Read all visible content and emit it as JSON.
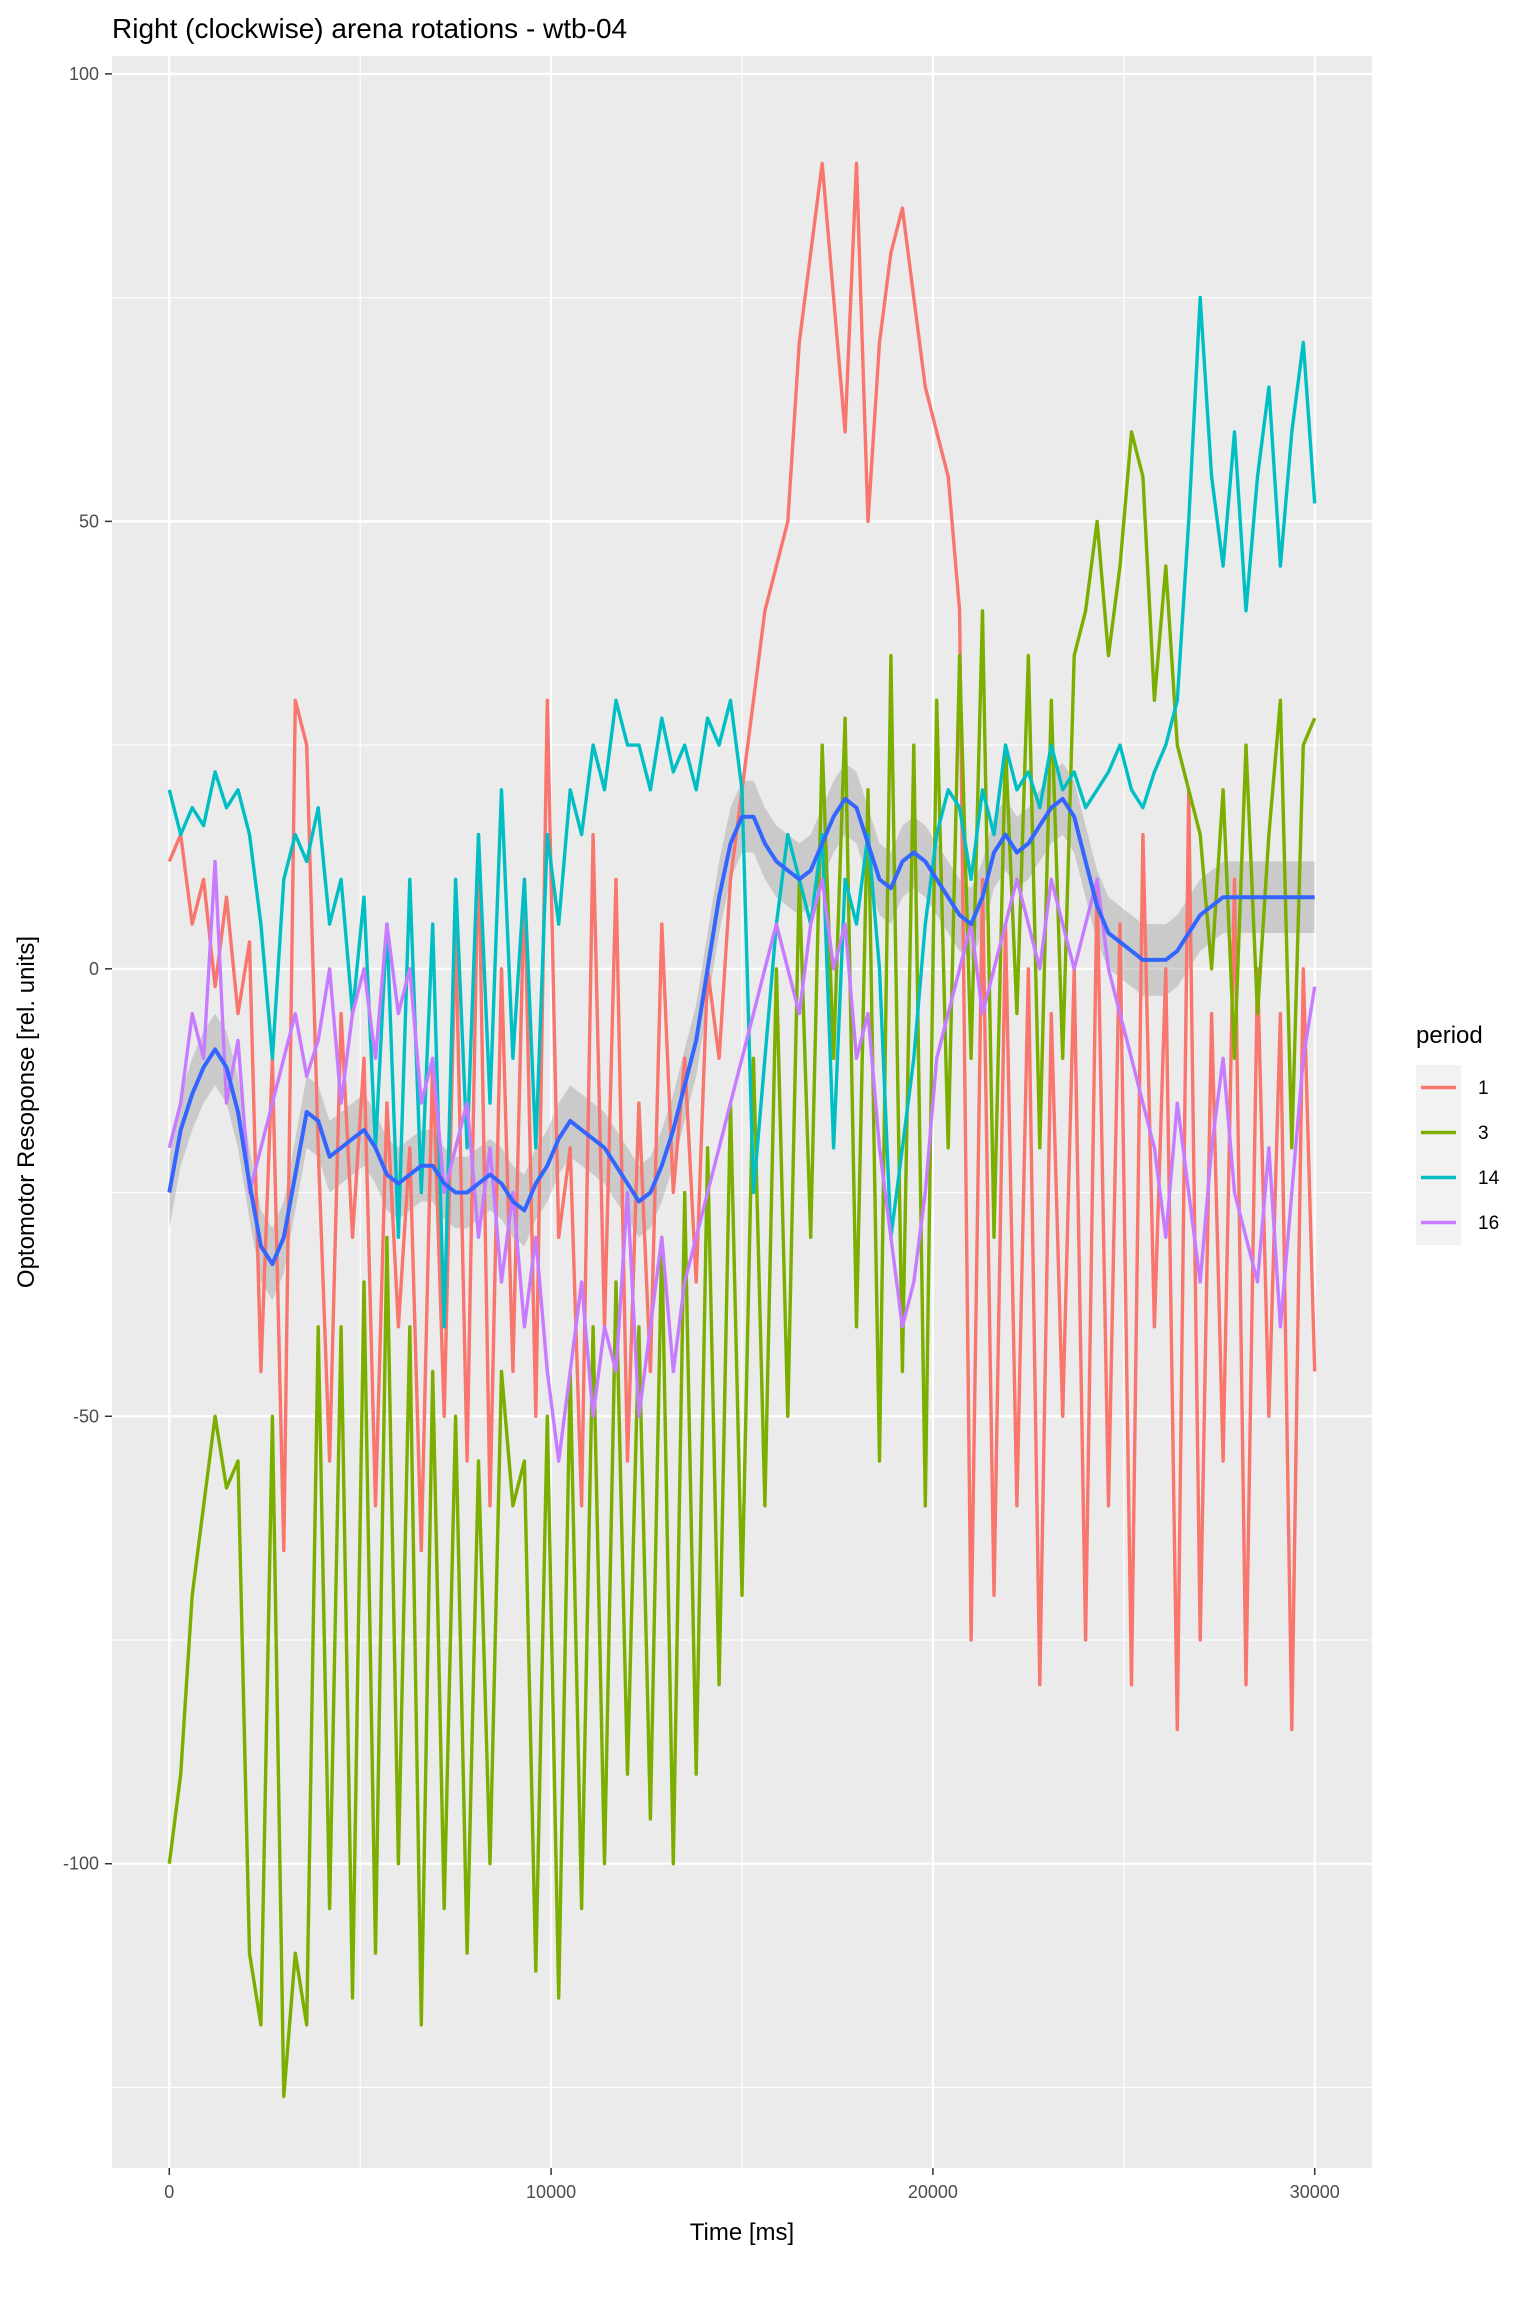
{
  "chart_data": {
    "type": "line",
    "title": "Right (clockwise) arena rotations - wtb-04",
    "xlabel": "Time [ms]",
    "ylabel": "Optomotor Resoponse [rel. units]",
    "xlim": [
      -1500,
      31500
    ],
    "ylim": [
      -134,
      102
    ],
    "x_ticks": [
      0,
      10000,
      20000,
      30000
    ],
    "x_tick_labels": [
      "0",
      "10000",
      "20000",
      "30000"
    ],
    "y_ticks": [
      -100,
      -50,
      0,
      50,
      100
    ],
    "y_tick_labels": [
      "-100",
      "-50",
      "0",
      "50",
      "100"
    ],
    "grid": true,
    "legend": {
      "title": "period",
      "position": "right"
    },
    "series": [
      {
        "name": "1",
        "color": "#F8766D",
        "x": [
          0,
          300,
          600,
          900,
          1200,
          1500,
          1800,
          2100,
          2400,
          2700,
          3000,
          3300,
          3600,
          3900,
          4200,
          4500,
          4800,
          5100,
          5400,
          5700,
          6000,
          6300,
          6600,
          6900,
          7200,
          7500,
          7800,
          8100,
          8400,
          8700,
          9000,
          9300,
          9600,
          9900,
          10200,
          10500,
          10800,
          11100,
          11400,
          11700,
          12000,
          12300,
          12600,
          12900,
          13200,
          13500,
          13800,
          14100,
          14400,
          14700,
          15000,
          15300,
          15600,
          15900,
          16200,
          16500,
          16800,
          17100,
          17400,
          17700,
          18000,
          18300,
          18600,
          18900,
          19200,
          19500,
          19800,
          20100,
          20400,
          20700,
          21000,
          21300,
          21600,
          21900,
          22200,
          22500,
          22800,
          23100,
          23400,
          23700,
          24000,
          24300,
          24600,
          24900,
          25200,
          25500,
          25800,
          26100,
          26400,
          26700,
          27000,
          27300,
          27600,
          27900,
          28200,
          28500,
          28800,
          29100,
          29400,
          29700,
          30000
        ],
        "values": [
          12,
          15,
          5,
          10,
          -2,
          8,
          -5,
          3,
          -45,
          -10,
          -65,
          30,
          25,
          -20,
          -55,
          -5,
          -30,
          -10,
          -60,
          -15,
          -40,
          -20,
          -65,
          -10,
          -50,
          5,
          -55,
          15,
          -60,
          0,
          -45,
          10,
          -50,
          30,
          -30,
          -20,
          -60,
          15,
          -40,
          10,
          -55,
          -15,
          -45,
          5,
          -25,
          -10,
          -35,
          0,
          -10,
          10,
          20,
          30,
          40,
          45,
          50,
          70,
          80,
          90,
          75,
          60,
          90,
          50,
          70,
          80,
          85,
          75,
          65,
          60,
          55,
          40,
          -75,
          10,
          -70,
          5,
          -60,
          0,
          -80,
          -5,
          -50,
          0,
          -75,
          10,
          -60,
          5,
          -80,
          15,
          -40,
          0,
          -85,
          20,
          -75,
          -5,
          -55,
          10,
          -80,
          0,
          -50,
          -5,
          -85,
          0,
          -45
        ]
      },
      {
        "name": "3",
        "color": "#7CAE00",
        "x": [
          0,
          300,
          600,
          900,
          1200,
          1500,
          1800,
          2100,
          2400,
          2700,
          3000,
          3300,
          3600,
          3900,
          4200,
          4500,
          4800,
          5100,
          5400,
          5700,
          6000,
          6300,
          6600,
          6900,
          7200,
          7500,
          7800,
          8100,
          8400,
          8700,
          9000,
          9300,
          9600,
          9900,
          10200,
          10500,
          10800,
          11100,
          11400,
          11700,
          12000,
          12300,
          12600,
          12900,
          13200,
          13500,
          13800,
          14100,
          14400,
          14700,
          15000,
          15300,
          15600,
          15900,
          16200,
          16500,
          16800,
          17100,
          17400,
          17700,
          18000,
          18300,
          18600,
          18900,
          19200,
          19500,
          19800,
          20100,
          20400,
          20700,
          21000,
          21300,
          21600,
          21900,
          22200,
          22500,
          22800,
          23100,
          23400,
          23700,
          24000,
          24300,
          24600,
          24900,
          25200,
          25500,
          25800,
          26100,
          26400,
          26700,
          27000,
          27300,
          27600,
          27900,
          28200,
          28500,
          28800,
          29100,
          29400,
          29700,
          30000
        ],
        "values": [
          -100,
          -90,
          -70,
          -60,
          -50,
          -58,
          -55,
          -110,
          -118,
          -50,
          -126,
          -110,
          -118,
          -40,
          -105,
          -40,
          -115,
          -35,
          -110,
          -30,
          -100,
          -40,
          -118,
          -45,
          -105,
          -50,
          -110,
          -55,
          -100,
          -45,
          -60,
          -55,
          -112,
          -50,
          -115,
          -45,
          -105,
          -40,
          -100,
          -35,
          -90,
          -40,
          -95,
          -30,
          -100,
          -25,
          -90,
          -20,
          -80,
          -15,
          -70,
          -10,
          -60,
          0,
          -50,
          10,
          -30,
          25,
          -10,
          28,
          -40,
          20,
          -55,
          35,
          -45,
          25,
          -60,
          30,
          -20,
          35,
          -10,
          40,
          -30,
          25,
          -5,
          35,
          -20,
          30,
          -10,
          35,
          40,
          50,
          35,
          45,
          60,
          55,
          30,
          45,
          25,
          20,
          15,
          0,
          20,
          -10,
          25,
          -5,
          15,
          30,
          -20,
          25,
          28
        ]
      },
      {
        "name": "14",
        "color": "#00BFC4",
        "x": [
          0,
          300,
          600,
          900,
          1200,
          1500,
          1800,
          2100,
          2400,
          2700,
          3000,
          3300,
          3600,
          3900,
          4200,
          4500,
          4800,
          5100,
          5400,
          5700,
          6000,
          6300,
          6600,
          6900,
          7200,
          7500,
          7800,
          8100,
          8400,
          8700,
          9000,
          9300,
          9600,
          9900,
          10200,
          10500,
          10800,
          11100,
          11400,
          11700,
          12000,
          12300,
          12600,
          12900,
          13200,
          13500,
          13800,
          14100,
          14400,
          14700,
          15000,
          15300,
          15600,
          15900,
          16200,
          16500,
          16800,
          17100,
          17400,
          17700,
          18000,
          18300,
          18600,
          18900,
          19200,
          19500,
          19800,
          20100,
          20400,
          20700,
          21000,
          21300,
          21600,
          21900,
          22200,
          22500,
          22800,
          23100,
          23400,
          23700,
          24000,
          24300,
          24600,
          24900,
          25200,
          25500,
          25800,
          26100,
          26400,
          26700,
          27000,
          27300,
          27600,
          27900,
          28200,
          28500,
          28800,
          29100,
          29400,
          29700,
          30000
        ],
        "values": [
          20,
          15,
          18,
          16,
          22,
          18,
          20,
          15,
          5,
          -10,
          10,
          15,
          12,
          18,
          5,
          10,
          -5,
          8,
          -20,
          5,
          -30,
          10,
          -25,
          5,
          -40,
          10,
          -20,
          15,
          -15,
          20,
          -10,
          10,
          -20,
          15,
          5,
          20,
          15,
          25,
          20,
          30,
          25,
          25,
          20,
          28,
          22,
          25,
          20,
          28,
          25,
          30,
          20,
          -25,
          -10,
          5,
          15,
          10,
          5,
          15,
          -20,
          10,
          5,
          15,
          0,
          -30,
          -20,
          -10,
          5,
          15,
          20,
          18,
          10,
          20,
          15,
          25,
          20,
          22,
          18,
          25,
          20,
          22,
          18,
          20,
          22,
          25,
          20,
          18,
          22,
          25,
          30,
          50,
          75,
          55,
          45,
          60,
          40,
          55,
          65,
          45,
          60,
          70,
          52
        ]
      },
      {
        "name": "16",
        "color": "#C77CFF",
        "x": [
          0,
          300,
          600,
          900,
          1200,
          1500,
          1800,
          2100,
          2400,
          2700,
          3000,
          3300,
          3600,
          3900,
          4200,
          4500,
          4800,
          5100,
          5400,
          5700,
          6000,
          6300,
          6600,
          6900,
          7200,
          7500,
          7800,
          8100,
          8400,
          8700,
          9000,
          9300,
          9600,
          9900,
          10200,
          10500,
          10800,
          11100,
          11400,
          11700,
          12000,
          12300,
          12600,
          12900,
          13200,
          13500,
          13800,
          14100,
          14400,
          14700,
          15000,
          15300,
          15600,
          15900,
          16200,
          16500,
          16800,
          17100,
          17400,
          17700,
          18000,
          18300,
          18600,
          18900,
          19200,
          19500,
          19800,
          20100,
          20400,
          20700,
          21000,
          21300,
          21600,
          21900,
          22200,
          22500,
          22800,
          23100,
          23400,
          23700,
          24000,
          24300,
          24600,
          24900,
          25200,
          25500,
          25800,
          26100,
          26400,
          26700,
          27000,
          27300,
          27600,
          27900,
          28200,
          28500,
          28800,
          29100,
          29400,
          29700,
          30000
        ],
        "values": [
          -20,
          -15,
          -5,
          -10,
          12,
          -15,
          -8,
          -25,
          -20,
          -15,
          -10,
          -5,
          -12,
          -8,
          0,
          -15,
          -5,
          0,
          -10,
          5,
          -5,
          0,
          -15,
          -10,
          -25,
          -20,
          -15,
          -30,
          -20,
          -35,
          -25,
          -40,
          -30,
          -45,
          -55,
          -45,
          -35,
          -50,
          -40,
          -45,
          -25,
          -50,
          -40,
          -30,
          -45,
          -35,
          -30,
          -25,
          -20,
          -15,
          -10,
          -5,
          0,
          5,
          0,
          -5,
          5,
          10,
          0,
          5,
          -10,
          -5,
          -20,
          -30,
          -40,
          -35,
          -25,
          -10,
          -5,
          0,
          5,
          -5,
          0,
          5,
          10,
          5,
          0,
          10,
          5,
          0,
          5,
          10,
          0,
          -5,
          -10,
          -15,
          -20,
          -30,
          -15,
          -25,
          -35,
          -20,
          -10,
          -25,
          -30,
          -35,
          -20,
          -40,
          -25,
          -10,
          -2
        ]
      }
    ],
    "smooth": {
      "color": "#3366FF",
      "x": [
        0,
        300,
        600,
        900,
        1200,
        1500,
        1800,
        2100,
        2400,
        2700,
        3000,
        3300,
        3600,
        3900,
        4200,
        4500,
        4800,
        5100,
        5400,
        5700,
        6000,
        6300,
        6600,
        6900,
        7200,
        7500,
        7800,
        8100,
        8400,
        8700,
        9000,
        9300,
        9600,
        9900,
        10200,
        10500,
        10800,
        11100,
        11400,
        11700,
        12000,
        12300,
        12600,
        12900,
        13200,
        13500,
        13800,
        14100,
        14400,
        14700,
        15000,
        15300,
        15600,
        15900,
        16200,
        16500,
        16800,
        17100,
        17400,
        17700,
        18000,
        18300,
        18600,
        18900,
        19200,
        19500,
        19800,
        20100,
        20400,
        20700,
        21000,
        21300,
        21600,
        21900,
        22200,
        22500,
        22800,
        23100,
        23400,
        23700,
        24000,
        24300,
        24600,
        24900,
        25200,
        25500,
        25800,
        26100,
        26400,
        26700,
        27000,
        27300,
        27600,
        27900,
        28200,
        28500,
        28800,
        29100,
        29400,
        29700,
        30000
      ],
      "values": [
        -25,
        -18,
        -14,
        -11,
        -9,
        -11,
        -16,
        -24,
        -31,
        -33,
        -30,
        -23,
        -16,
        -17,
        -21,
        -20,
        -19,
        -18,
        -20,
        -23,
        -24,
        -23,
        -22,
        -22,
        -24,
        -25,
        -25,
        -24,
        -23,
        -24,
        -26,
        -27,
        -24,
        -22,
        -19,
        -17,
        -18,
        -19,
        -20,
        -22,
        -24,
        -26,
        -25,
        -22,
        -18,
        -13,
        -8,
        0,
        8,
        14,
        17,
        17,
        14,
        12,
        11,
        10,
        11,
        14,
        17,
        19,
        18,
        14,
        10,
        9,
        12,
        13,
        12,
        10,
        8,
        6,
        5,
        8,
        13,
        15,
        13,
        14,
        16,
        18,
        19,
        17,
        12,
        7,
        4,
        3,
        2,
        1,
        1,
        1,
        2,
        4,
        6,
        7,
        8,
        8,
        8,
        8,
        8,
        8,
        8,
        8,
        8
      ],
      "ci_half": 4
    }
  }
}
